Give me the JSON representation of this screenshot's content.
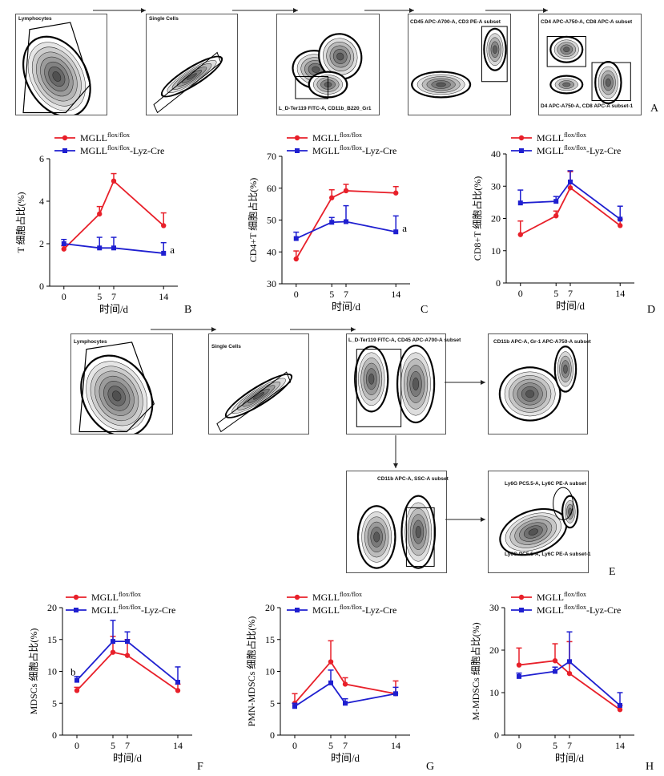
{
  "flow_top": {
    "gate_labels": [
      "Lymphocytes",
      "Single Cells",
      "L_D-Ter119 FITC-A, CD11b_B220_Gr1",
      "CD45 APC-A700-A, CD3 PE-A subset",
      "CD4 APC-A750-A, CD8 APC-A subset",
      "D4 APC-A750-A, CD8 APC-A subset-1"
    ],
    "panel_letter": "A"
  },
  "flow_bottom": {
    "gate_labels": [
      "Lymphocytes",
      "Single Cells",
      "L_D-Ter119 FITC-A, CD45 APC-A700-A subset",
      "CD11b APC-A, Gr-1 APC-A750-A subset",
      "CD11b APC-A, SSC-A subset",
      "Ly6G PC5.5-A, Ly6C PE-A subset",
      "Ly6G PC5.5-A, Ly6C PE-A subset-1"
    ],
    "panel_letter": "E"
  },
  "colors": {
    "flox": "#e8202a",
    "cre": "#1f1fd0"
  },
  "chart_data": [
    {
      "type": "line",
      "panel": "B",
      "ylabel": "T 细胞占比(%)",
      "xlabel": "时间/d",
      "x": [
        0,
        5,
        7,
        14
      ],
      "ylim": [
        0,
        6
      ],
      "yticks": [
        0,
        2,
        4,
        6
      ],
      "series": [
        {
          "name": "MGLL",
          "sup": "flox/flox",
          "suffix": "",
          "values": [
            1.75,
            3.4,
            4.95,
            2.85
          ],
          "err": [
            0.15,
            0.35,
            0.35,
            0.6
          ]
        },
        {
          "name": "MGLL",
          "sup": "flox/flox",
          "suffix": "-Lyz-Cre",
          "values": [
            2.0,
            1.8,
            1.8,
            1.55
          ],
          "err": [
            0.2,
            0.5,
            0.5,
            0.5
          ]
        }
      ],
      "annotations": [
        {
          "text": "a",
          "x": 14,
          "y": 1.7
        }
      ]
    },
    {
      "type": "line",
      "panel": "C",
      "ylabel": "CD4+T 细胞占比(%)",
      "xlabel": "时间/d",
      "x": [
        0,
        5,
        7,
        14
      ],
      "ylim": [
        30,
        70
      ],
      "yticks": [
        30,
        40,
        50,
        60,
        70
      ],
      "series": [
        {
          "name": "MGLL",
          "sup": "flox/flox",
          "suffix": "",
          "values": [
            37.8,
            57.0,
            59.2,
            58.5
          ],
          "err": [
            2.5,
            2.5,
            2.0,
            2.0
          ]
        },
        {
          "name": "MGLL",
          "sup": "flox/flox",
          "suffix": "-Lyz-Cre",
          "values": [
            44.2,
            49.3,
            49.5,
            46.3
          ],
          "err": [
            2.0,
            1.5,
            5.0,
            5.0
          ]
        }
      ],
      "annotations": [
        {
          "text": "a",
          "x": 14,
          "y": 47.3
        }
      ]
    },
    {
      "type": "line",
      "panel": "D",
      "ylabel": "CD8+T 细胞占比(%)",
      "xlabel": "时间/d",
      "x": [
        0,
        5,
        7,
        14
      ],
      "ylim": [
        0,
        40
      ],
      "yticks": [
        0,
        10,
        20,
        30,
        40
      ],
      "series": [
        {
          "name": "MGLL",
          "sup": "flox/flox",
          "suffix": "",
          "values": [
            15.0,
            20.8,
            29.5,
            17.8
          ],
          "err": [
            4.2,
            1.5,
            5.0,
            2.0
          ]
        },
        {
          "name": "MGLL",
          "sup": "flox/flox",
          "suffix": "-Lyz-Cre",
          "values": [
            24.8,
            25.3,
            31.3,
            19.8
          ],
          "err": [
            4.0,
            1.5,
            3.5,
            4.0
          ]
        }
      ],
      "annotations": []
    },
    {
      "type": "line",
      "panel": "F",
      "ylabel": "MDSCs 细胞占比(%)",
      "xlabel": "时间/d",
      "x": [
        0,
        5,
        7,
        14
      ],
      "ylim": [
        0,
        20
      ],
      "yticks": [
        0,
        5,
        10,
        15,
        20
      ],
      "series": [
        {
          "name": "MGLL",
          "sup": "flox/flox",
          "suffix": "",
          "values": [
            7.0,
            13.0,
            12.5,
            7.0
          ],
          "err": [
            0.5,
            2.5,
            2.5,
            1.0
          ]
        },
        {
          "name": "MGLL",
          "sup": "flox/flox",
          "suffix": "-Lyz-Cre",
          "values": [
            8.6,
            14.7,
            14.7,
            8.3
          ],
          "err": [
            0.6,
            3.3,
            1.5,
            2.4
          ]
        }
      ],
      "annotations": [
        {
          "text": "b",
          "x": 0,
          "y": 9.9
        }
      ]
    },
    {
      "type": "line",
      "panel": "G",
      "ylabel": "PMN-MDSCs 细胞占比(%)",
      "xlabel": "时间/d",
      "x": [
        0,
        5,
        7,
        14
      ],
      "ylim": [
        0,
        20
      ],
      "yticks": [
        0,
        5,
        10,
        15,
        20
      ],
      "series": [
        {
          "name": "MGLL",
          "sup": "flox/flox",
          "suffix": "",
          "values": [
            5.0,
            11.5,
            8.0,
            6.5
          ],
          "err": [
            1.5,
            3.3,
            1.0,
            2.0
          ]
        },
        {
          "name": "MGLL",
          "sup": "flox/flox",
          "suffix": "-Lyz-Cre",
          "values": [
            4.5,
            8.2,
            5.0,
            6.5
          ],
          "err": [
            0.5,
            2.0,
            0.7,
            1.0
          ]
        }
      ],
      "annotations": []
    },
    {
      "type": "line",
      "panel": "H",
      "ylabel": "M-MDSCs 细胞占比(%)",
      "xlabel": "时间/d",
      "x": [
        0,
        5,
        7,
        14
      ],
      "ylim": [
        0,
        30
      ],
      "yticks": [
        0,
        10,
        20,
        30
      ],
      "series": [
        {
          "name": "MGLL",
          "sup": "flox/flox",
          "suffix": "",
          "values": [
            16.5,
            17.5,
            14.5,
            6.0
          ],
          "err": [
            4.0,
            4.0,
            7.5,
            1.0
          ]
        },
        {
          "name": "MGLL",
          "sup": "flox/flox",
          "suffix": "-Lyz-Cre",
          "values": [
            13.8,
            15.0,
            17.3,
            7.0
          ],
          "err": [
            0.8,
            1.0,
            7.0,
            3.0
          ]
        }
      ],
      "annotations": []
    }
  ]
}
